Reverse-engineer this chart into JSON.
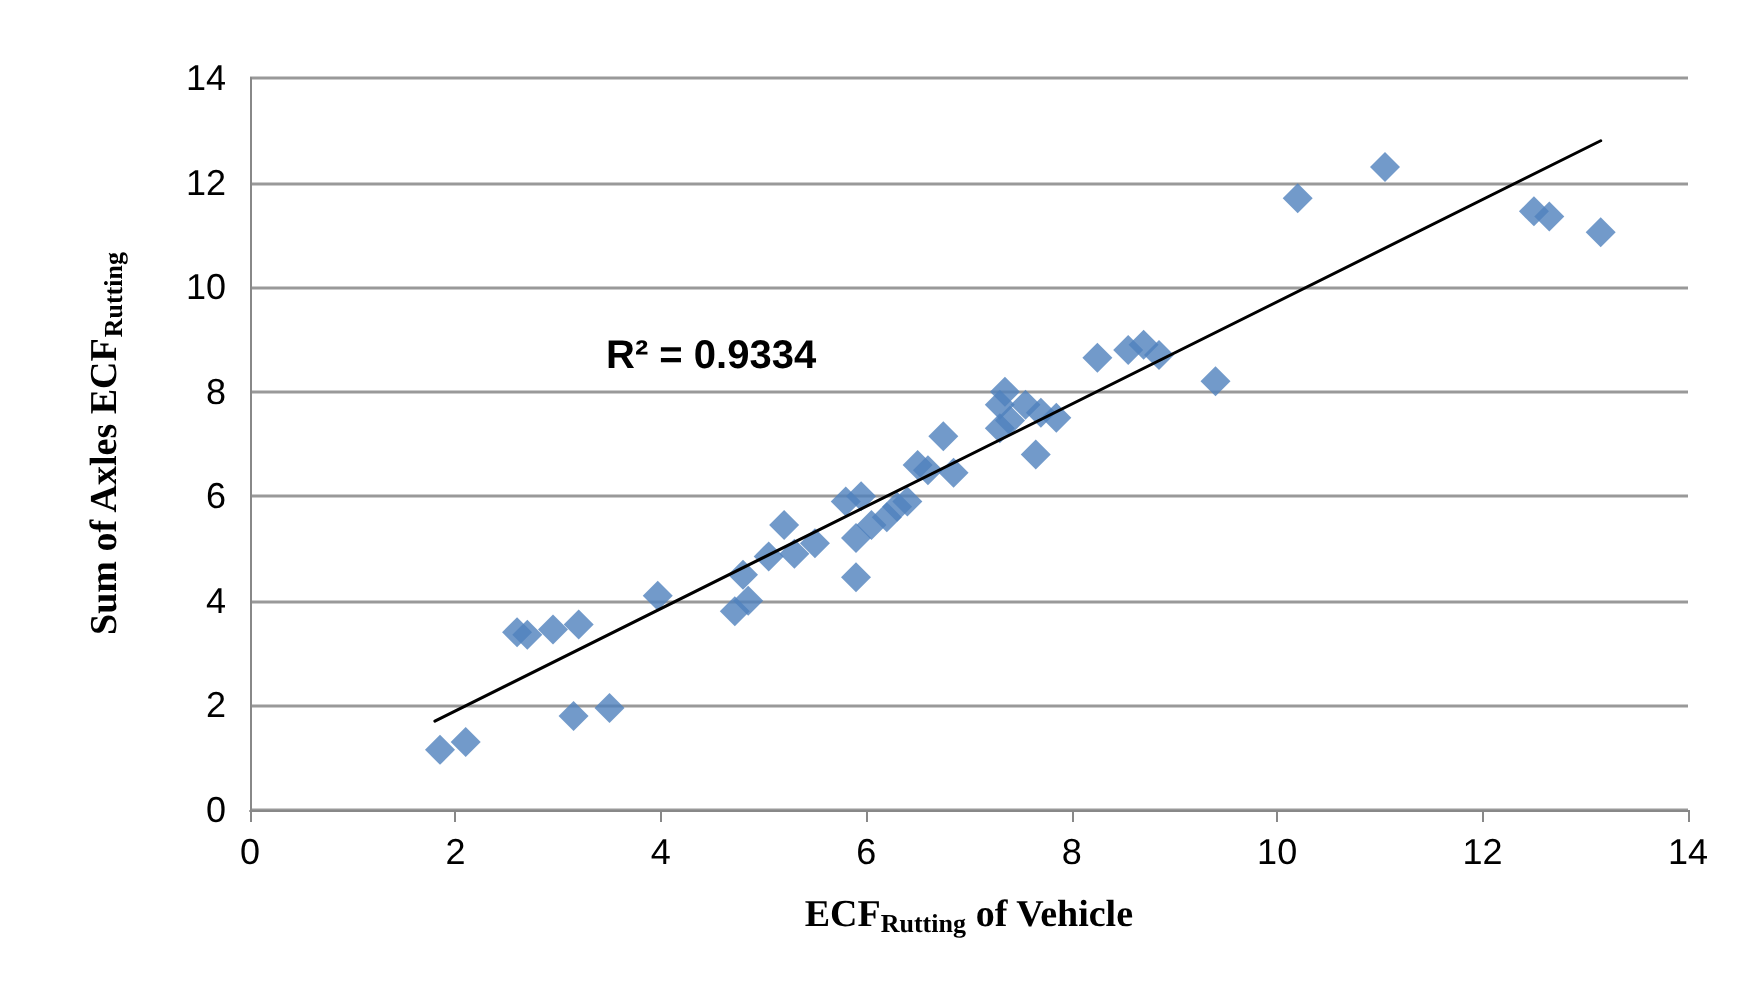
{
  "chart_data": {
    "type": "scatter",
    "xlabel": "ECF$_{Rutting}$ of Vehicle",
    "ylabel": "Sum of Axles ECF$_{Rutting}$",
    "xlim": [
      0,
      14
    ],
    "ylim": [
      0,
      14
    ],
    "xticks": [
      0,
      2,
      4,
      6,
      8,
      10,
      12,
      14
    ],
    "yticks": [
      0,
      2,
      4,
      6,
      8,
      10,
      12,
      14
    ],
    "grid": "y",
    "marker": "diamond",
    "annotations": [
      "R² = 0.9334"
    ],
    "series": [
      {
        "color": "#4f81bd",
        "x": [
          1.85,
          2.1,
          2.6,
          2.7,
          2.95,
          3.2,
          3.15,
          3.5,
          3.97,
          4.72,
          4.85,
          4.8,
          5.05,
          5.2,
          5.3,
          5.5,
          5.8,
          5.9,
          5.9,
          5.95,
          6.05,
          6.2,
          6.3,
          6.4,
          6.5,
          6.6,
          6.75,
          6.85,
          7.3,
          7.35,
          7.3,
          7.4,
          7.55,
          7.65,
          7.7,
          7.85,
          8.25,
          8.55,
          8.7,
          8.85,
          9.4,
          10.2,
          11.05,
          12.5,
          12.65,
          13.15
        ],
        "values": [
          1.15,
          1.3,
          3.4,
          3.35,
          3.45,
          3.55,
          1.8,
          1.95,
          4.1,
          3.8,
          4.0,
          4.5,
          4.85,
          5.45,
          4.9,
          5.1,
          5.9,
          5.2,
          4.45,
          6.0,
          5.45,
          5.6,
          5.8,
          5.9,
          6.6,
          6.5,
          7.15,
          6.45,
          7.75,
          8.0,
          7.3,
          7.45,
          7.75,
          6.8,
          7.6,
          7.5,
          8.65,
          8.8,
          8.9,
          8.7,
          8.2,
          11.7,
          12.3,
          11.45,
          11.35,
          11.05
        ]
      },
      {
        "type": "line",
        "color": "#000000",
        "marker": "none",
        "x": [
          1.8,
          13.15
        ],
        "values": [
          1.7,
          12.8
        ]
      }
    ]
  }
}
